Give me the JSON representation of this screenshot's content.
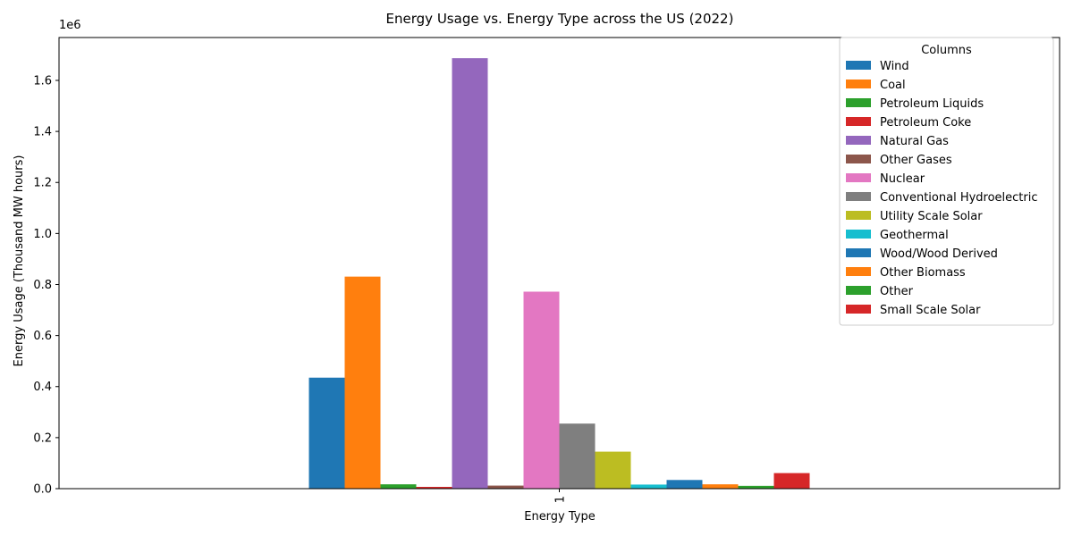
{
  "chart_data": {
    "type": "bar",
    "title": "Energy Usage vs. Energy Type across the US (2022)",
    "xlabel": "Energy Type",
    "ylabel": "Energy Usage (Thousand MW hours)",
    "categories": [
      "1"
    ],
    "y_multiplier_label": "1e6",
    "ylim": [
      0,
      1.768
    ],
    "y_ticks": [
      0.0,
      0.2,
      0.4,
      0.6,
      0.8,
      1.0,
      1.2,
      1.4,
      1.6
    ],
    "y_tick_labels": [
      "0.0",
      "0.2",
      "0.4",
      "0.6",
      "0.8",
      "1.0",
      "1.2",
      "1.4",
      "1.6"
    ],
    "legend_title": "Columns",
    "legend_position": "top-right",
    "grid": false,
    "series": [
      {
        "name": "Wind",
        "values": [
          0.435
        ],
        "color": "#1f77b4"
      },
      {
        "name": "Coal",
        "values": [
          0.831
        ],
        "color": "#ff7f0e"
      },
      {
        "name": "Petroleum Liquids",
        "values": [
          0.017
        ],
        "color": "#2ca02c"
      },
      {
        "name": "Petroleum Coke",
        "values": [
          0.007
        ],
        "color": "#d62728"
      },
      {
        "name": "Natural Gas",
        "values": [
          1.687
        ],
        "color": "#9467bd"
      },
      {
        "name": "Other Gases",
        "values": [
          0.012
        ],
        "color": "#8c564b"
      },
      {
        "name": "Nuclear",
        "values": [
          0.772
        ],
        "color": "#e377c2"
      },
      {
        "name": "Conventional Hydroelectric",
        "values": [
          0.255
        ],
        "color": "#7f7f7f"
      },
      {
        "name": "Utility Scale Solar",
        "values": [
          0.145
        ],
        "color": "#bcbd22"
      },
      {
        "name": "Geothermal",
        "values": [
          0.016
        ],
        "color": "#17becf"
      },
      {
        "name": "Wood/Wood Derived",
        "values": [
          0.034
        ],
        "color": "#1f77b4"
      },
      {
        "name": "Other Biomass",
        "values": [
          0.017
        ],
        "color": "#ff7f0e"
      },
      {
        "name": "Other",
        "values": [
          0.011
        ],
        "color": "#2ca02c"
      },
      {
        "name": "Small Scale Solar",
        "values": [
          0.061
        ],
        "color": "#d62728"
      }
    ]
  }
}
